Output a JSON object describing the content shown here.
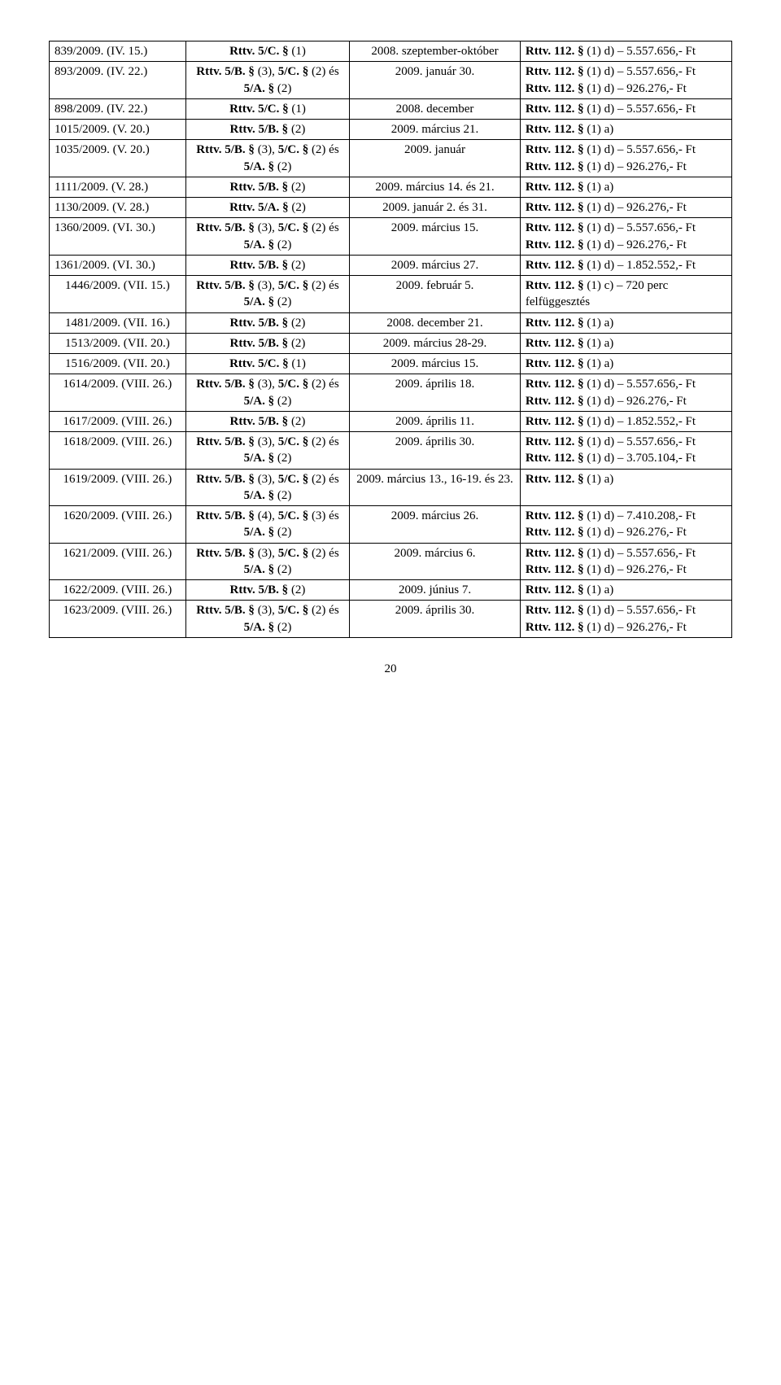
{
  "page_number": "20",
  "rows": [
    {
      "c0": "839/2009. (IV. 15.)",
      "c1": "<b>Rttv. 5/C. §</b> (1)",
      "c2": "2008. szeptember-október",
      "c3": "<b>Rttv. 112. §</b> (1) d) – 5.557.656,- Ft",
      "c2_align": "center"
    },
    {
      "c0": "893/2009. (IV. 22.)",
      "c1": "<b>Rttv. 5/B. §</b> (3), <b>5/C. §</b> (2) és<br><b>5/A. §</b> (2)",
      "c2": "2009. január 30.",
      "c3": "<b>Rttv. 112. §</b> (1) d) – 5.557.656,- Ft<br><b>Rttv. 112. §</b> (1) d) – 926.276,- Ft",
      "c2_align": "center"
    },
    {
      "c0": "898/2009. (IV. 22.)",
      "c1": "<b>Rttv. 5/C. §</b> (1)",
      "c2": "2008. december",
      "c3": "<b>Rttv. 112. §</b> (1) d) – 5.557.656,- Ft",
      "c2_align": "center"
    },
    {
      "c0": "1015/2009. (V. 20.)",
      "c1": "<b>Rttv. 5/B. §</b> (2)",
      "c2": "2009. március 21.",
      "c3": "<b>Rttv. 112. §</b> (1) a)",
      "c2_align": "center"
    },
    {
      "c0": "1035/2009. (V. 20.)",
      "c1": "<b>Rttv. 5/B. §</b> (3), <b>5/C. §</b> (2) és<br><b>5/A. §</b> (2)",
      "c2": "2009. január",
      "c3": "<b>Rttv. 112. §</b> (1) d) – 5.557.656,- Ft<br><b>Rttv. 112. §</b> (1) d) – 926.276,- Ft",
      "c2_align": "center"
    },
    {
      "c0": "1111/2009. (V. 28.)",
      "c1": "<b>Rttv. 5/B. §</b> (2)",
      "c2": "2009. március 14. és 21.",
      "c3": "<b>Rttv. 112. §</b> (1) a)",
      "c2_align": "center"
    },
    {
      "c0": "1130/2009. (V. 28.)",
      "c1": "<b>Rttv. 5/A. §</b> (2)",
      "c2": "2009. január 2. és 31.",
      "c3": "<b>Rttv. 112. §</b> (1) d) – 926.276,- Ft",
      "c2_align": "center"
    },
    {
      "c0": "1360/2009. (VI. 30.)",
      "c1": "<b>Rttv. 5/B. §</b> (3), <b>5/C. §</b> (2) és<br><b>5/A. §</b> (2)",
      "c2": "2009. március 15.",
      "c3": "<b>Rttv. 112. §</b> (1) d) – 5.557.656,- Ft<br><b>Rttv. 112. §</b> (1) d) – 926.276,- Ft",
      "c2_align": "center"
    },
    {
      "c0": "1361/2009. (VI. 30.)",
      "c1": "<b>Rttv. 5/B. §</b> (2)",
      "c2": "2009. március 27.",
      "c3": "<b>Rttv. 112. §</b> (1) d) – 1.852.552,- Ft",
      "c2_align": "center"
    },
    {
      "c0": "1446/2009. (VII. 15.)",
      "c0_align": "center",
      "c1": "<b>Rttv. 5/B. §</b> (3), <b>5/C. §</b> (2) és<br><b>5/A. §</b> (2)",
      "c2": "2009. február 5.",
      "c3": "<b>Rttv. 112. §</b> (1) c) – 720 perc felfüggesztés",
      "c2_align": "center"
    },
    {
      "c0": "1481/2009. (VII. 16.)",
      "c0_align": "center",
      "c1": "<b>Rttv. 5/B. §</b> (2)",
      "c2": "2008. december 21.",
      "c3": "<b>Rttv. 112. §</b> (1) a)",
      "c2_align": "center"
    },
    {
      "c0": "1513/2009. (VII. 20.)",
      "c0_align": "center",
      "c1": "<b>Rttv. 5/B. §</b> (2)",
      "c2": "2009. március 28-29.",
      "c3": "<b>Rttv. 112. §</b> (1) a)",
      "c2_align": "center"
    },
    {
      "c0": "1516/2009. (VII. 20.)",
      "c0_align": "center",
      "c1": "<b>Rttv. 5/C. §</b> (1)",
      "c2": "2009. március 15.",
      "c3": "<b>Rttv. 112. §</b> (1) a)",
      "c2_align": "center"
    },
    {
      "c0": "1614/2009. (VIII. 26.)",
      "c0_align": "center",
      "c1": "<b>Rttv. 5/B. §</b> (3), <b>5/C. §</b> (2) és<br><b>5/A. §</b> (2)",
      "c2": "2009. április 18.",
      "c3": "<b>Rttv. 112. §</b> (1) d) – 5.557.656,- Ft<br><b>Rttv. 112. §</b> (1) d) – 926.276,- Ft",
      "c2_align": "center"
    },
    {
      "c0": "1617/2009. (VIII. 26.)",
      "c0_align": "center",
      "c1": "<b>Rttv. 5/B. §</b> (2)",
      "c2": "2009. április 11.",
      "c3": "<b>Rttv. 112. §</b> (1) d) – 1.852.552,- Ft",
      "c2_align": "center"
    },
    {
      "c0": "1618/2009. (VIII. 26.)",
      "c0_align": "center",
      "c1": "<b>Rttv. 5/B. §</b> (3), <b>5/C. §</b> (2) és<br><b>5/A. §</b> (2)",
      "c2": "2009. április 30.",
      "c3": "<b>Rttv. 112. §</b> (1) d) – 5.557.656,- Ft<br><b>Rttv. 112. §</b> (1) d) – 3.705.104,- Ft",
      "c2_align": "center"
    },
    {
      "c0": "1619/2009. (VIII. 26.)",
      "c0_align": "center",
      "c1": "<b>Rttv. 5/B. §</b> (3), <b>5/C. §</b> (2) és<br><b>5/A. §</b> (2)",
      "c2": "2009. március 13., 16-19. és 23.",
      "c3": "<b>Rttv. 112. §</b> (1) a)",
      "c2_align": "center"
    },
    {
      "c0": "1620/2009. (VIII. 26.)",
      "c0_align": "center",
      "c1": "<b>Rttv. 5/B. §</b> (4), <b>5/C. §</b> (3) és<br><b>5/A. §</b> (2)",
      "c2": "2009. március 26.",
      "c3": "<b>Rttv. 112. §</b> (1) d) – 7.410.208,- Ft<br><b>Rttv. 112. §</b> (1) d) – 926.276,- Ft",
      "c2_align": "center"
    },
    {
      "c0": "1621/2009. (VIII. 26.)",
      "c0_align": "center",
      "c1": "<b>Rttv. 5/B. §</b> (3), <b>5/C. §</b> (2) és<br><b>5/A. §</b> (2)",
      "c2": "2009. március 6.",
      "c3": "<b>Rttv. 112. §</b> (1) d) – 5.557.656,- Ft<br><b>Rttv. 112. §</b> (1) d) – 926.276,- Ft",
      "c2_align": "center"
    },
    {
      "c0": "1622/2009. (VIII. 26.)",
      "c0_align": "center",
      "c1": "<b>Rttv. 5/B. §</b> (2)",
      "c2": "2009. június 7.",
      "c3": "<b>Rttv. 112. §</b> (1) a)",
      "c2_align": "center"
    },
    {
      "c0": "1623/2009. (VIII. 26.)",
      "c0_align": "center",
      "c1": "<b>Rttv. 5/B. §</b> (3), <b>5/C. §</b> (2) és<br><b>5/A. §</b> (2)",
      "c2": "2009. április 30.",
      "c3": "<b>Rttv. 112. §</b> (1) d) – 5.557.656,- Ft<br><b>Rttv. 112. §</b> (1) d) – 926.276,- Ft",
      "c2_align": "center"
    }
  ]
}
